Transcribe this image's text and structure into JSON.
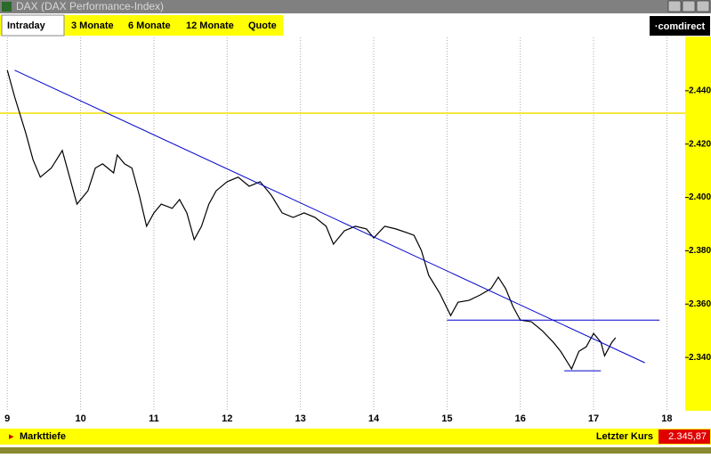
{
  "window": {
    "title": "DAX (DAX Performance-Index)"
  },
  "tabs": [
    "Intraday",
    "3 Monate",
    "6 Monate",
    "12 Monate",
    "Quote"
  ],
  "logo": "·comdirect",
  "chart_data": {
    "type": "line",
    "x": [
      9.0,
      9.1,
      9.25,
      9.35,
      9.45,
      9.6,
      9.75,
      9.85,
      9.95,
      10.1,
      10.2,
      10.3,
      10.45,
      10.5,
      10.6,
      10.7,
      10.8,
      10.9,
      11.0,
      11.1,
      11.25,
      11.35,
      11.45,
      11.55,
      11.65,
      11.75,
      11.85,
      12.0,
      12.15,
      12.3,
      12.45,
      12.6,
      12.75,
      12.9,
      13.05,
      13.2,
      13.35,
      13.45,
      13.6,
      13.75,
      13.9,
      14.0,
      14.15,
      14.3,
      14.45,
      14.55,
      14.65,
      14.75,
      14.9,
      15.05,
      15.15,
      15.3,
      15.45,
      15.6,
      15.7,
      15.8,
      15.9,
      16.0,
      16.15,
      16.3,
      16.45,
      16.55,
      16.7,
      16.8,
      16.9,
      17.0,
      17.1,
      17.15,
      17.25,
      17.3
    ],
    "series": [
      {
        "name": "DAX",
        "color": "#000000",
        "values": [
          2.4477,
          2.4377,
          2.4243,
          2.4142,
          2.4076,
          2.411,
          2.4176,
          2.4076,
          2.3975,
          2.4025,
          2.411,
          2.4126,
          2.4092,
          2.4159,
          2.4126,
          2.411,
          2.4009,
          2.3892,
          2.3942,
          2.3975,
          2.3959,
          2.3992,
          2.3942,
          2.3842,
          2.3892,
          2.3975,
          2.4025,
          2.4059,
          2.4076,
          2.4042,
          2.4059,
          2.4009,
          2.3942,
          2.3925,
          2.3942,
          2.3925,
          2.3892,
          2.3825,
          2.3875,
          2.3892,
          2.3882,
          2.3848,
          2.3892,
          2.3882,
          2.3868,
          2.3858,
          2.3801,
          2.3708,
          2.3641,
          2.3557,
          2.3607,
          2.3614,
          2.3634,
          2.3658,
          2.3701,
          2.3658,
          2.3591,
          2.354,
          2.3534,
          2.35,
          2.3457,
          2.3423,
          2.3357,
          2.3423,
          2.344,
          2.349,
          2.3457,
          2.3406,
          2.3457,
          2.3474
        ]
      }
    ],
    "trend_lines": [
      {
        "x": [
          9.1,
          17.7
        ],
        "values": [
          2.4477,
          2.338
        ],
        "color": "#0000cc"
      },
      {
        "x": [
          15.0,
          17.9
        ],
        "values": [
          2.354,
          2.354
        ],
        "color": "#0000cc"
      },
      {
        "x": [
          16.6,
          17.1
        ],
        "values": [
          2.335,
          2.335
        ],
        "color": "#0000cc"
      }
    ],
    "reference_line": {
      "value": 2.4316,
      "color": "#f0e000"
    },
    "xlim": [
      8.9,
      18.25
    ],
    "xticks": [
      9,
      10,
      11,
      12,
      13,
      14,
      15,
      16,
      17,
      18
    ],
    "ylim": [
      2.32,
      2.46
    ],
    "yticks": [
      {
        "value": 2.34,
        "label": "2.340"
      },
      {
        "value": 2.36,
        "label": "2.360"
      },
      {
        "value": 2.38,
        "label": "2.380"
      },
      {
        "value": 2.4,
        "label": "2.400"
      },
      {
        "value": 2.42,
        "label": "2.420"
      },
      {
        "value": 2.44,
        "label": "2.440"
      }
    ],
    "grid": true
  },
  "footer": {
    "link": "Markttiefe",
    "last_label": "Letzter Kurs",
    "last_value": "2.345,87"
  }
}
